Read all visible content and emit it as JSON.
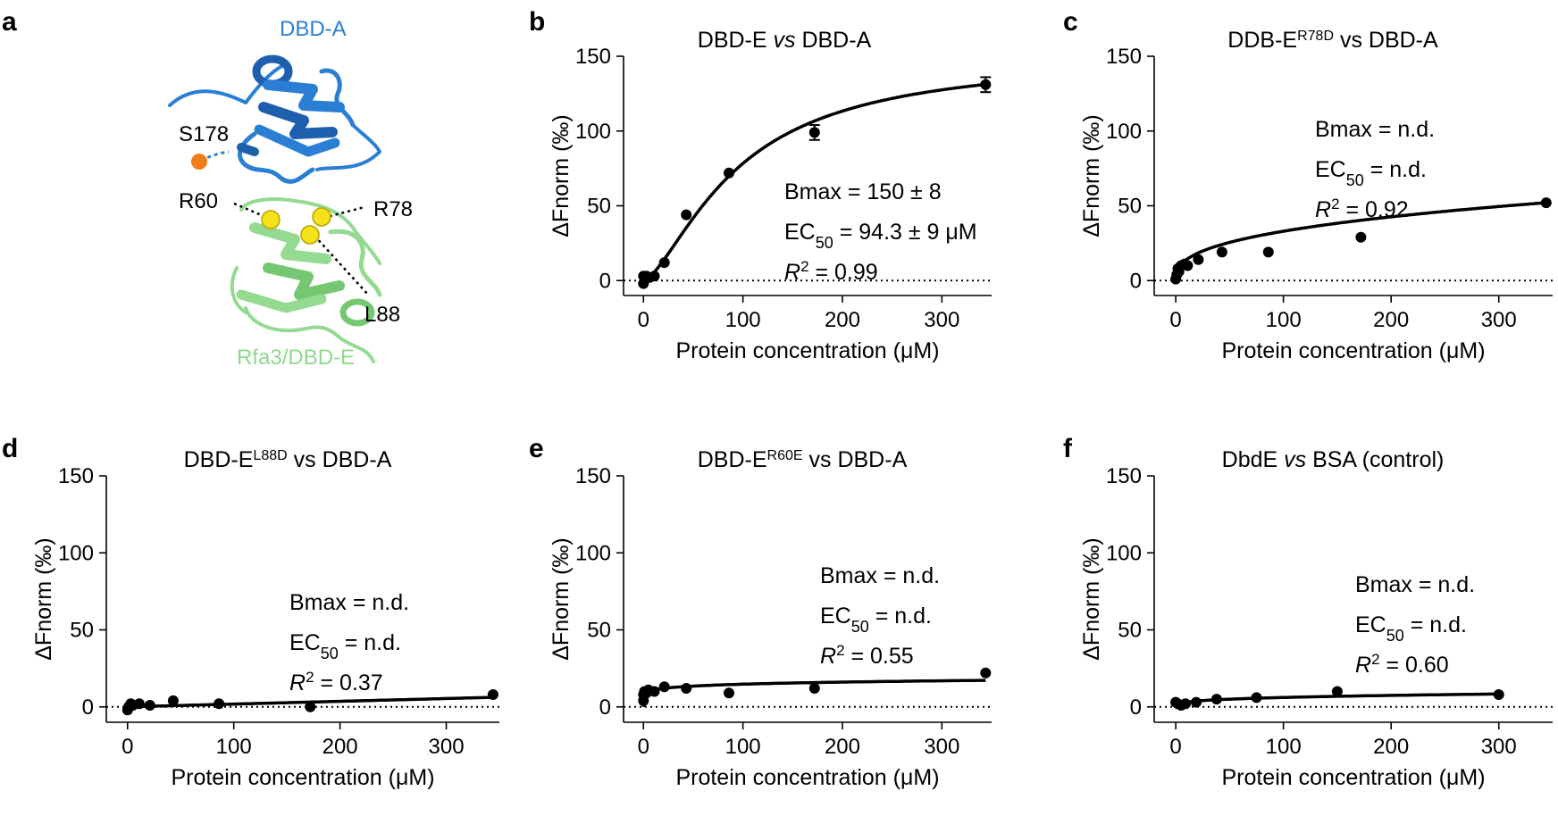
{
  "colors": {
    "dbd_a": "#2a7fd4",
    "dbd_a_dark": "#1e5fae",
    "dbd_e": "#8fd98c",
    "dbd_e_dark": "#5fb85c",
    "s178_dot": "#ee7d1a",
    "residue_sphere": "#f5e21a"
  },
  "structure": {
    "letter": "a",
    "labels": {
      "dbd_a": "DBD-A",
      "s178": "S178",
      "r60": "R60",
      "r78": "R78",
      "l88": "L88",
      "dbd_e": "Rfa3/DBD-E"
    }
  },
  "chart_data": [
    {
      "letter": "b",
      "type": "scatter",
      "title": {
        "before": "DBD-E ",
        "italic": "vs",
        "after": " DBD-A",
        "sup": ""
      },
      "xlabel": "Protein concentration (μM)",
      "ylabel": "ΔFnorm (‰)",
      "xlim": [
        -20,
        350
      ],
      "ylim": [
        -10,
        150
      ],
      "xticks": [
        0,
        100,
        200,
        300
      ],
      "yticks": [
        0,
        50,
        100,
        150
      ],
      "points": [
        [
          0,
          -2
        ],
        [
          0,
          3
        ],
        [
          3,
          3
        ],
        [
          6,
          2
        ],
        [
          11,
          3
        ],
        [
          21,
          12
        ],
        [
          43,
          44
        ],
        [
          86,
          72
        ],
        [
          172,
          99
        ],
        [
          344,
          131
        ]
      ],
      "error_bars": [
        [
          172,
          5
        ],
        [
          344,
          5
        ]
      ],
      "fit": {
        "model": "hill",
        "bmax": 150,
        "ec50": 94.3,
        "n": 1.5
      },
      "annotation": {
        "bmax": "Bmax = 150 ± 8",
        "ec50_pre": "EC",
        "ec50_sub": "50",
        "ec50_post": " = 94.3 ± 9 μM",
        "r2_value": " = 0.99"
      }
    },
    {
      "letter": "c",
      "type": "scatter",
      "title": {
        "before": "DDB-E",
        "italic": "",
        "after": " vs DBD-A",
        "sup": "R78D"
      },
      "xlabel": "Protein concentration (μM)",
      "ylabel": "ΔFnorm (‰)",
      "xlim": [
        -20,
        350
      ],
      "ylim": [
        -10,
        150
      ],
      "xticks": [
        0,
        100,
        200,
        300
      ],
      "yticks": [
        0,
        50,
        100,
        150
      ],
      "points": [
        [
          0,
          1
        ],
        [
          1,
          4
        ],
        [
          2,
          8
        ],
        [
          3,
          6
        ],
        [
          5,
          10
        ],
        [
          8,
          11
        ],
        [
          11,
          10
        ],
        [
          21,
          14
        ],
        [
          43,
          19
        ],
        [
          86,
          19
        ],
        [
          172,
          29
        ],
        [
          344,
          52
        ]
      ],
      "error_bars": [],
      "fit": {
        "model": "power",
        "a": 6.0,
        "b": 0.37
      },
      "annotation": {
        "bmax": "Bmax = n.d.",
        "ec50_pre": "EC",
        "ec50_sub": "50",
        "ec50_post": " = n.d.",
        "r2_value": " = 0.92"
      }
    },
    {
      "letter": "d",
      "type": "scatter",
      "title": {
        "before": "DBD-E",
        "italic": "",
        "after": " vs DBD-A",
        "sup": "L88D"
      },
      "xlabel": "Protein concentration (μM)",
      "ylabel": "ΔFnorm (‰)",
      "xlim": [
        -20,
        350
      ],
      "ylim": [
        -10,
        150
      ],
      "xticks": [
        0,
        100,
        200,
        300
      ],
      "yticks": [
        0,
        50,
        100,
        150
      ],
      "points": [
        [
          0,
          -2
        ],
        [
          1,
          0
        ],
        [
          3,
          2
        ],
        [
          5,
          1
        ],
        [
          11,
          2
        ],
        [
          21,
          1
        ],
        [
          43,
          4
        ],
        [
          86,
          2
        ],
        [
          172,
          0
        ],
        [
          344,
          8
        ]
      ],
      "error_bars": [],
      "fit": {
        "model": "line",
        "a": 0.0,
        "b": 0.018
      },
      "annotation": {
        "bmax": "Bmax = n.d.",
        "ec50_pre": "EC",
        "ec50_sub": "50",
        "ec50_post": " = n.d.",
        "r2_value": " = 0.37"
      }
    },
    {
      "letter": "e",
      "type": "scatter",
      "title": {
        "before": "DBD-E",
        "italic": "",
        "after": " vs DBD-A",
        "sup": "R60E"
      },
      "xlabel": "Protein concentration (μM)",
      "ylabel": "ΔFnorm (‰)",
      "xlim": [
        -20,
        350
      ],
      "ylim": [
        -10,
        150
      ],
      "xticks": [
        0,
        100,
        200,
        300
      ],
      "yticks": [
        0,
        50,
        100,
        150
      ],
      "points": [
        [
          0,
          4
        ],
        [
          0,
          8
        ],
        [
          1,
          10
        ],
        [
          3,
          9
        ],
        [
          5,
          11
        ],
        [
          11,
          10
        ],
        [
          21,
          13
        ],
        [
          43,
          12
        ],
        [
          86,
          9
        ],
        [
          172,
          12
        ],
        [
          344,
          22
        ]
      ],
      "error_bars": [],
      "fit": {
        "model": "power",
        "a": 8.2,
        "b": 0.127
      },
      "annotation": {
        "bmax": "Bmax = n.d.",
        "ec50_pre": "EC",
        "ec50_sub": "50",
        "ec50_post": " = n.d.",
        "r2_value": " = 0.55"
      }
    },
    {
      "letter": "f",
      "type": "scatter",
      "title": {
        "before": "DbdE ",
        "italic": "vs",
        "after": " BSA (control)",
        "sup": ""
      },
      "xlabel": "Protein concentration (μM)",
      "ylabel": "ΔFnorm (‰)",
      "xlim": [
        -20,
        350
      ],
      "ylim": [
        -10,
        150
      ],
      "xticks": [
        0,
        100,
        200,
        300
      ],
      "yticks": [
        0,
        50,
        100,
        150
      ],
      "points": [
        [
          0,
          3
        ],
        [
          2,
          2
        ],
        [
          5,
          1
        ],
        [
          9,
          2
        ],
        [
          19,
          3
        ],
        [
          38,
          5
        ],
        [
          75,
          6
        ],
        [
          150,
          10
        ],
        [
          300,
          8
        ]
      ],
      "error_bars": [],
      "fit": {
        "model": "power",
        "a": 1.6,
        "b": 0.29
      },
      "annotation": {
        "bmax": "Bmax = n.d.",
        "ec50_pre": "EC",
        "ec50_sub": "50",
        "ec50_post": " = n.d.",
        "r2_value": " = 0.60"
      }
    }
  ]
}
